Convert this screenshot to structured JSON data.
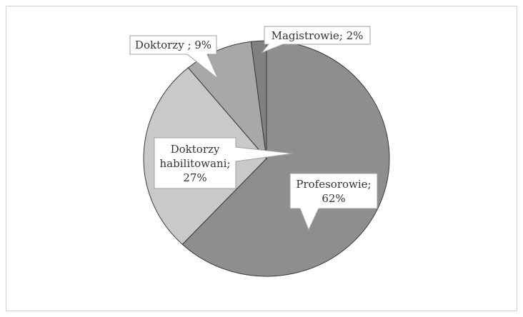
{
  "chart_data": {
    "type": "pie",
    "value_labels": [
      "Profesorowie;\n62%",
      "Doktorzy\nhabilitowani;\n27%",
      "Doktorzy ; 9%",
      "Magistrowie; 2%"
    ],
    "values": [
      62,
      27,
      9,
      2
    ],
    "colors": [
      "#8e8e8e",
      "#c9c9c9",
      "#a8a8a8",
      "#808080"
    ]
  }
}
